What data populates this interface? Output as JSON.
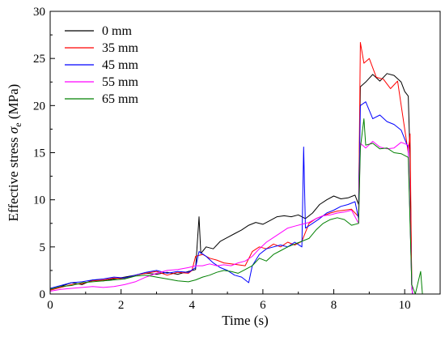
{
  "chart_data": {
    "type": "line",
    "xlabel": "Time (s)",
    "ylabel": {
      "main": "Effective stress ",
      "symbol": "σ",
      "subscript": "e",
      "unit": " (MPa)"
    },
    "xlim": [
      0,
      11
    ],
    "ylim": [
      0,
      30
    ],
    "xticks": [
      0,
      2,
      4,
      6,
      8,
      10
    ],
    "yticks": [
      0,
      5,
      10,
      15,
      20,
      25,
      30
    ],
    "legend_position": "top-left",
    "grid": false,
    "series": [
      {
        "name": "0 mm",
        "color": "#000000",
        "points": [
          [
            0,
            0.5
          ],
          [
            0.3,
            0.8
          ],
          [
            0.6,
            1.2
          ],
          [
            0.9,
            1.0
          ],
          [
            1.2,
            1.5
          ],
          [
            1.5,
            1.4
          ],
          [
            1.8,
            1.6
          ],
          [
            2.1,
            1.8
          ],
          [
            2.4,
            2.0
          ],
          [
            2.7,
            2.2
          ],
          [
            3.0,
            2.1
          ],
          [
            3.3,
            2.3
          ],
          [
            3.6,
            2.1
          ],
          [
            3.9,
            2.4
          ],
          [
            4.1,
            2.6
          ],
          [
            4.2,
            8.2
          ],
          [
            4.25,
            4.3
          ],
          [
            4.4,
            5.0
          ],
          [
            4.6,
            4.8
          ],
          [
            4.8,
            5.6
          ],
          [
            5.0,
            6.0
          ],
          [
            5.2,
            6.4
          ],
          [
            5.4,
            6.8
          ],
          [
            5.6,
            7.3
          ],
          [
            5.8,
            7.6
          ],
          [
            6.0,
            7.4
          ],
          [
            6.2,
            7.8
          ],
          [
            6.4,
            8.2
          ],
          [
            6.6,
            8.3
          ],
          [
            6.8,
            8.2
          ],
          [
            7.0,
            8.4
          ],
          [
            7.2,
            8.0
          ],
          [
            7.4,
            8.6
          ],
          [
            7.6,
            9.5
          ],
          [
            7.8,
            10.0
          ],
          [
            8.0,
            10.4
          ],
          [
            8.2,
            10.1
          ],
          [
            8.4,
            10.2
          ],
          [
            8.6,
            10.5
          ],
          [
            8.7,
            9.5
          ],
          [
            8.75,
            22.0
          ],
          [
            8.9,
            22.5
          ],
          [
            9.1,
            23.3
          ],
          [
            9.3,
            22.6
          ],
          [
            9.5,
            23.4
          ],
          [
            9.7,
            23.2
          ],
          [
            9.9,
            22.5
          ],
          [
            10.0,
            21.5
          ],
          [
            10.1,
            21.0
          ],
          [
            10.15,
            14.5
          ],
          [
            10.2,
            1.0
          ],
          [
            10.22,
            0
          ],
          [
            11,
            0
          ]
        ]
      },
      {
        "name": "35 mm",
        "color": "#ff0000",
        "points": [
          [
            0,
            0.4
          ],
          [
            0.3,
            0.7
          ],
          [
            0.6,
            1.0
          ],
          [
            0.9,
            1.1
          ],
          [
            1.2,
            1.4
          ],
          [
            1.5,
            1.5
          ],
          [
            1.8,
            1.7
          ],
          [
            2.1,
            1.6
          ],
          [
            2.4,
            2.0
          ],
          [
            2.7,
            2.2
          ],
          [
            3.0,
            2.4
          ],
          [
            3.3,
            2.0
          ],
          [
            3.6,
            2.3
          ],
          [
            3.9,
            2.2
          ],
          [
            4.0,
            2.5
          ],
          [
            4.1,
            4.0
          ],
          [
            4.3,
            4.2
          ],
          [
            4.5,
            3.8
          ],
          [
            4.7,
            3.6
          ],
          [
            4.9,
            3.3
          ],
          [
            5.1,
            3.2
          ],
          [
            5.3,
            3.1
          ],
          [
            5.5,
            3.0
          ],
          [
            5.7,
            4.5
          ],
          [
            5.9,
            5.0
          ],
          [
            6.1,
            4.8
          ],
          [
            6.3,
            5.3
          ],
          [
            6.5,
            5.0
          ],
          [
            6.7,
            5.5
          ],
          [
            6.9,
            5.2
          ],
          [
            7.1,
            5.6
          ],
          [
            7.3,
            7.5
          ],
          [
            7.5,
            8.0
          ],
          [
            7.7,
            8.3
          ],
          [
            7.9,
            8.6
          ],
          [
            8.1,
            8.8
          ],
          [
            8.3,
            8.9
          ],
          [
            8.5,
            9.0
          ],
          [
            8.7,
            8.2
          ],
          [
            8.75,
            26.7
          ],
          [
            8.85,
            24.5
          ],
          [
            9.0,
            25.0
          ],
          [
            9.2,
            23.0
          ],
          [
            9.4,
            22.8
          ],
          [
            9.6,
            21.8
          ],
          [
            9.8,
            22.6
          ],
          [
            10.0,
            17.5
          ],
          [
            10.1,
            15.0
          ],
          [
            10.15,
            17.0
          ],
          [
            10.2,
            1.0
          ],
          [
            10.22,
            0
          ],
          [
            11,
            0
          ]
        ]
      },
      {
        "name": "45 mm",
        "color": "#0000ff",
        "points": [
          [
            0,
            0.6
          ],
          [
            0.3,
            0.9
          ],
          [
            0.6,
            1.2
          ],
          [
            0.9,
            1.3
          ],
          [
            1.2,
            1.5
          ],
          [
            1.5,
            1.6
          ],
          [
            1.8,
            1.8
          ],
          [
            2.1,
            1.7
          ],
          [
            2.4,
            2.0
          ],
          [
            2.7,
            2.3
          ],
          [
            3.0,
            2.5
          ],
          [
            3.3,
            2.2
          ],
          [
            3.6,
            2.4
          ],
          [
            3.9,
            2.3
          ],
          [
            4.1,
            2.8
          ],
          [
            4.2,
            4.5
          ],
          [
            4.4,
            4.0
          ],
          [
            4.6,
            3.3
          ],
          [
            4.8,
            2.8
          ],
          [
            5.0,
            2.5
          ],
          [
            5.2,
            2.0
          ],
          [
            5.4,
            1.8
          ],
          [
            5.6,
            1.2
          ],
          [
            5.7,
            3.0
          ],
          [
            5.9,
            4.2
          ],
          [
            6.1,
            4.8
          ],
          [
            6.3,
            5.0
          ],
          [
            6.5,
            5.2
          ],
          [
            6.7,
            5.0
          ],
          [
            6.9,
            5.5
          ],
          [
            7.1,
            5.0
          ],
          [
            7.15,
            15.6
          ],
          [
            7.2,
            7.0
          ],
          [
            7.4,
            7.5
          ],
          [
            7.6,
            8.0
          ],
          [
            7.8,
            8.6
          ],
          [
            8.0,
            8.9
          ],
          [
            8.2,
            9.3
          ],
          [
            8.4,
            9.5
          ],
          [
            8.6,
            9.8
          ],
          [
            8.7,
            8.0
          ],
          [
            8.75,
            20.0
          ],
          [
            8.9,
            20.4
          ],
          [
            9.1,
            18.6
          ],
          [
            9.3,
            19.0
          ],
          [
            9.5,
            18.3
          ],
          [
            9.7,
            18.0
          ],
          [
            9.9,
            17.4
          ],
          [
            10.1,
            15.5
          ],
          [
            10.2,
            1.0
          ],
          [
            10.22,
            0
          ],
          [
            11,
            0
          ]
        ]
      },
      {
        "name": "55 mm",
        "color": "#ff00ff",
        "points": [
          [
            0,
            0.3
          ],
          [
            0.3,
            0.5
          ],
          [
            0.6,
            0.6
          ],
          [
            0.9,
            0.7
          ],
          [
            1.2,
            0.8
          ],
          [
            1.5,
            0.7
          ],
          [
            1.8,
            0.8
          ],
          [
            2.1,
            1.0
          ],
          [
            2.4,
            1.3
          ],
          [
            2.7,
            1.8
          ],
          [
            3.0,
            2.2
          ],
          [
            3.3,
            2.5
          ],
          [
            3.6,
            2.6
          ],
          [
            3.9,
            2.8
          ],
          [
            4.1,
            3.0
          ],
          [
            4.3,
            3.0
          ],
          [
            4.5,
            3.2
          ],
          [
            4.7,
            3.0
          ],
          [
            4.9,
            3.1
          ],
          [
            5.1,
            3.0
          ],
          [
            5.3,
            3.3
          ],
          [
            5.5,
            3.5
          ],
          [
            5.7,
            4.0
          ],
          [
            5.9,
            4.8
          ],
          [
            6.1,
            5.5
          ],
          [
            6.3,
            6.0
          ],
          [
            6.5,
            6.5
          ],
          [
            6.7,
            7.0
          ],
          [
            6.9,
            7.2
          ],
          [
            7.1,
            7.4
          ],
          [
            7.3,
            7.6
          ],
          [
            7.5,
            8.0
          ],
          [
            7.7,
            8.3
          ],
          [
            7.9,
            8.4
          ],
          [
            8.1,
            8.6
          ],
          [
            8.3,
            8.7
          ],
          [
            8.5,
            8.9
          ],
          [
            8.7,
            7.5
          ],
          [
            8.75,
            16.0
          ],
          [
            8.9,
            15.5
          ],
          [
            9.1,
            16.2
          ],
          [
            9.3,
            15.6
          ],
          [
            9.5,
            15.4
          ],
          [
            9.7,
            15.5
          ],
          [
            9.9,
            16.1
          ],
          [
            10.1,
            15.8
          ],
          [
            10.2,
            1.0
          ],
          [
            10.22,
            0
          ],
          [
            11,
            0
          ]
        ]
      },
      {
        "name": "65 mm",
        "color": "#008000",
        "points": [
          [
            0,
            0.5
          ],
          [
            0.3,
            0.8
          ],
          [
            0.6,
            0.9
          ],
          [
            0.9,
            1.2
          ],
          [
            1.2,
            1.3
          ],
          [
            1.5,
            1.4
          ],
          [
            1.8,
            1.5
          ],
          [
            2.1,
            1.6
          ],
          [
            2.4,
            1.9
          ],
          [
            2.7,
            2.0
          ],
          [
            3.0,
            1.8
          ],
          [
            3.3,
            1.6
          ],
          [
            3.6,
            1.4
          ],
          [
            3.9,
            1.3
          ],
          [
            4.1,
            1.5
          ],
          [
            4.3,
            1.8
          ],
          [
            4.5,
            2.0
          ],
          [
            4.7,
            2.3
          ],
          [
            4.9,
            2.5
          ],
          [
            5.1,
            2.4
          ],
          [
            5.3,
            2.2
          ],
          [
            5.5,
            2.6
          ],
          [
            5.7,
            3.0
          ],
          [
            5.9,
            3.8
          ],
          [
            6.1,
            3.5
          ],
          [
            6.3,
            4.2
          ],
          [
            6.5,
            4.6
          ],
          [
            6.7,
            5.0
          ],
          [
            6.9,
            5.3
          ],
          [
            7.1,
            5.6
          ],
          [
            7.3,
            5.9
          ],
          [
            7.5,
            6.8
          ],
          [
            7.7,
            7.5
          ],
          [
            7.9,
            7.9
          ],
          [
            8.1,
            8.1
          ],
          [
            8.3,
            7.9
          ],
          [
            8.5,
            7.3
          ],
          [
            8.7,
            7.5
          ],
          [
            8.75,
            15.5
          ],
          [
            8.85,
            18.6
          ],
          [
            8.9,
            15.8
          ],
          [
            9.1,
            16.0
          ],
          [
            9.3,
            15.4
          ],
          [
            9.5,
            15.5
          ],
          [
            9.7,
            15.0
          ],
          [
            9.9,
            14.9
          ],
          [
            10.1,
            14.5
          ],
          [
            10.2,
            1.0
          ],
          [
            10.3,
            0
          ],
          [
            10.45,
            2.4
          ],
          [
            10.5,
            0
          ],
          [
            11,
            0
          ]
        ]
      }
    ]
  }
}
